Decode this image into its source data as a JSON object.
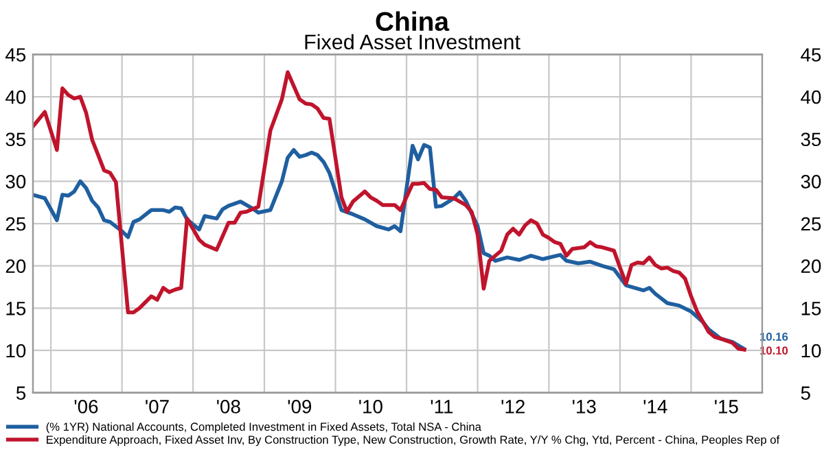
{
  "chart_data": {
    "type": "line",
    "title": "China",
    "subtitle": "Fixed Asset Investment",
    "xlim": [
      "2005-10",
      "2016-01"
    ],
    "ylim": [
      5,
      45
    ],
    "yticks": [
      5,
      10,
      15,
      20,
      25,
      30,
      35,
      40,
      45
    ],
    "y2lim": [
      5,
      45
    ],
    "y2ticks": [
      5,
      10,
      15,
      20,
      25,
      30,
      35,
      40,
      45
    ],
    "xticks": [
      {
        "value": "2006-01",
        "label": null
      },
      {
        "value": "2006-07",
        "label": "'06"
      },
      {
        "value": "2007-01",
        "label": null
      },
      {
        "value": "2007-07",
        "label": "'07"
      },
      {
        "value": "2008-01",
        "label": null
      },
      {
        "value": "2008-07",
        "label": "'08"
      },
      {
        "value": "2009-01",
        "label": null
      },
      {
        "value": "2009-07",
        "label": "'09"
      },
      {
        "value": "2010-01",
        "label": null
      },
      {
        "value": "2010-07",
        "label": "'10"
      },
      {
        "value": "2011-01",
        "label": null
      },
      {
        "value": "2011-07",
        "label": "'11"
      },
      {
        "value": "2012-01",
        "label": null
      },
      {
        "value": "2012-07",
        "label": "'12"
      },
      {
        "value": "2013-01",
        "label": null
      },
      {
        "value": "2013-07",
        "label": "'13"
      },
      {
        "value": "2014-01",
        "label": null
      },
      {
        "value": "2014-07",
        "label": "'14"
      },
      {
        "value": "2015-01",
        "label": null
      },
      {
        "value": "2015-07",
        "label": "'15"
      }
    ],
    "grid": true,
    "legend": "bottom",
    "line_style": "solid",
    "series": [
      {
        "name": "(% 1YR) National Accounts, Completed Investment in Fixed Assets, Total NSA - China",
        "color": "#1f5fa0",
        "x": [
          "2005-10",
          "2005-12",
          "2006-02",
          "2006-03",
          "2006-04",
          "2006-05",
          "2006-06",
          "2006-07",
          "2006-08",
          "2006-09",
          "2006-10",
          "2006-11",
          "2007-01",
          "2007-02",
          "2007-03",
          "2007-04",
          "2007-06",
          "2007-08",
          "2007-09",
          "2007-10",
          "2007-11",
          "2007-12",
          "2008-02",
          "2008-03",
          "2008-05",
          "2008-06",
          "2008-07",
          "2008-09",
          "2008-10",
          "2008-11",
          "2008-12",
          "2009-02",
          "2009-04",
          "2009-05",
          "2009-06",
          "2009-07",
          "2009-08",
          "2009-09",
          "2009-10",
          "2009-11",
          "2009-12",
          "2010-02",
          "2010-04",
          "2010-06",
          "2010-08",
          "2010-10",
          "2010-11",
          "2010-12",
          "2011-02",
          "2011-03",
          "2011-04",
          "2011-05",
          "2011-06",
          "2011-07",
          "2011-09",
          "2011-10",
          "2011-11",
          "2012-01",
          "2012-02",
          "2012-03",
          "2012-04",
          "2012-06",
          "2012-08",
          "2012-10",
          "2012-12",
          "2013-03",
          "2013-04",
          "2013-06",
          "2013-08",
          "2013-10",
          "2013-12",
          "2014-02",
          "2014-05",
          "2014-06",
          "2014-07",
          "2014-09",
          "2014-11",
          "2015-01",
          "2015-03",
          "2015-04",
          "2015-06",
          "2015-08",
          "2015-10"
        ],
        "values": [
          28.4,
          28.0,
          25.4,
          28.4,
          28.3,
          28.8,
          30.0,
          29.2,
          27.7,
          26.9,
          25.4,
          25.2,
          24.1,
          23.4,
          25.2,
          25.5,
          26.6,
          26.6,
          26.4,
          26.9,
          26.8,
          25.5,
          24.3,
          25.9,
          25.6,
          26.7,
          27.1,
          27.6,
          27.2,
          26.8,
          26.3,
          26.6,
          30.0,
          32.8,
          33.7,
          32.9,
          33.1,
          33.4,
          33.1,
          32.3,
          31.0,
          26.6,
          26.1,
          25.5,
          24.7,
          24.3,
          24.7,
          24.1,
          34.2,
          32.6,
          34.3,
          34.0,
          27.0,
          27.1,
          28.0,
          28.7,
          27.7,
          24.7,
          21.5,
          21.2,
          20.6,
          21.0,
          20.7,
          21.2,
          20.8,
          21.3,
          20.6,
          20.3,
          20.5,
          20.0,
          19.6,
          17.7,
          17.1,
          17.4,
          16.7,
          15.6,
          15.3,
          14.6,
          13.4,
          12.5,
          11.4,
          11.0,
          10.16
        ],
        "value_labels": [
          null,
          null,
          null,
          null,
          null,
          null,
          null,
          null,
          null,
          null,
          null,
          null,
          null,
          null,
          null,
          null,
          null,
          null,
          null,
          null,
          null,
          null,
          null,
          null,
          null,
          null,
          null,
          null,
          null,
          null,
          null,
          null,
          null,
          null,
          null,
          null,
          null,
          null,
          null,
          null,
          null,
          null,
          null,
          null,
          null,
          null,
          null,
          null,
          null,
          null,
          null,
          null,
          null,
          null,
          null,
          null,
          null,
          null,
          null,
          null,
          null,
          null,
          null,
          null,
          null,
          null,
          null,
          null,
          null,
          null,
          null,
          null,
          null,
          null,
          null,
          null,
          null,
          null,
          null,
          null,
          null,
          null,
          "10.16"
        ]
      },
      {
        "name": "Expenditure Approach, Fixed Asset Inv, By Construction Type, New Construction, Growth Rate, Y/Y % Chg, Ytd, Percent - China, Peoples Rep of",
        "color": "#c0142c",
        "x": [
          "2005-10",
          "2005-12",
          "2006-02",
          "2006-03",
          "2006-04",
          "2006-05",
          "2006-06",
          "2006-07",
          "2006-08",
          "2006-09",
          "2006-10",
          "2006-11",
          "2006-12",
          "2007-02",
          "2007-03",
          "2007-04",
          "2007-06",
          "2007-07",
          "2007-08",
          "2007-09",
          "2007-10",
          "2007-11",
          "2007-12",
          "2008-02",
          "2008-03",
          "2008-05",
          "2008-07",
          "2008-08",
          "2008-09",
          "2008-10",
          "2008-12",
          "2009-02",
          "2009-04",
          "2009-05",
          "2009-07",
          "2009-08",
          "2009-09",
          "2009-10",
          "2009-11",
          "2009-12",
          "2010-02",
          "2010-03",
          "2010-04",
          "2010-06",
          "2010-07",
          "2010-08",
          "2010-09",
          "2010-11",
          "2010-12",
          "2011-02",
          "2011-03",
          "2011-04",
          "2011-05",
          "2011-06",
          "2011-07",
          "2011-09",
          "2011-11",
          "2011-12",
          "2012-01",
          "2012-02",
          "2012-03",
          "2012-05",
          "2012-06",
          "2012-07",
          "2012-08",
          "2012-09",
          "2012-10",
          "2012-11",
          "2012-12",
          "2013-01",
          "2013-02",
          "2013-03",
          "2013-04",
          "2013-05",
          "2013-07",
          "2013-08",
          "2013-09",
          "2013-10",
          "2013-12",
          "2014-01",
          "2014-02",
          "2014-03",
          "2014-04",
          "2014-05",
          "2014-06",
          "2014-07",
          "2014-08",
          "2014-09",
          "2014-10",
          "2014-11",
          "2014-12",
          "2015-01",
          "2015-02",
          "2015-04",
          "2015-05",
          "2015-06",
          "2015-08",
          "2015-09",
          "2015-10"
        ],
        "values": [
          36.5,
          38.2,
          33.7,
          41.0,
          40.2,
          39.8,
          40.0,
          38.1,
          34.9,
          33.1,
          31.3,
          31.0,
          29.9,
          14.5,
          14.5,
          15.0,
          16.4,
          16.0,
          17.4,
          16.9,
          17.2,
          17.4,
          25.6,
          23.1,
          22.5,
          21.9,
          25.1,
          25.1,
          26.3,
          26.4,
          27.0,
          36.0,
          39.7,
          42.9,
          39.7,
          39.2,
          39.1,
          38.6,
          37.5,
          37.4,
          28.1,
          26.4,
          27.6,
          28.8,
          28.1,
          27.7,
          27.2,
          27.2,
          26.6,
          29.7,
          29.7,
          29.8,
          29.1,
          29.0,
          28.1,
          28.0,
          27.2,
          26.4,
          23.7,
          17.3,
          20.6,
          21.8,
          23.7,
          24.4,
          23.7,
          24.8,
          25.4,
          25.0,
          23.7,
          23.3,
          22.8,
          22.6,
          21.2,
          22.0,
          22.2,
          22.8,
          22.3,
          22.2,
          21.8,
          19.8,
          17.9,
          20.1,
          20.4,
          20.3,
          21.0,
          20.1,
          19.7,
          19.8,
          19.4,
          19.2,
          18.5,
          16.4,
          14.6,
          12.2,
          11.6,
          11.4,
          10.9,
          10.2,
          10.1
        ],
        "value_labels": [
          null,
          null,
          null,
          null,
          null,
          null,
          null,
          null,
          null,
          null,
          null,
          null,
          null,
          null,
          null,
          null,
          null,
          null,
          null,
          null,
          null,
          null,
          null,
          null,
          null,
          null,
          null,
          null,
          null,
          null,
          null,
          null,
          null,
          null,
          null,
          null,
          null,
          null,
          null,
          null,
          null,
          null,
          null,
          null,
          null,
          null,
          null,
          null,
          null,
          null,
          null,
          null,
          null,
          null,
          null,
          null,
          null,
          null,
          null,
          null,
          null,
          null,
          null,
          null,
          null,
          null,
          null,
          null,
          null,
          null,
          null,
          null,
          null,
          null,
          null,
          null,
          null,
          null,
          null,
          null,
          null,
          null,
          null,
          null,
          null,
          null,
          null,
          null,
          null,
          null,
          null,
          null,
          null,
          null,
          null,
          null,
          null,
          null,
          "10.10"
        ]
      }
    ]
  }
}
